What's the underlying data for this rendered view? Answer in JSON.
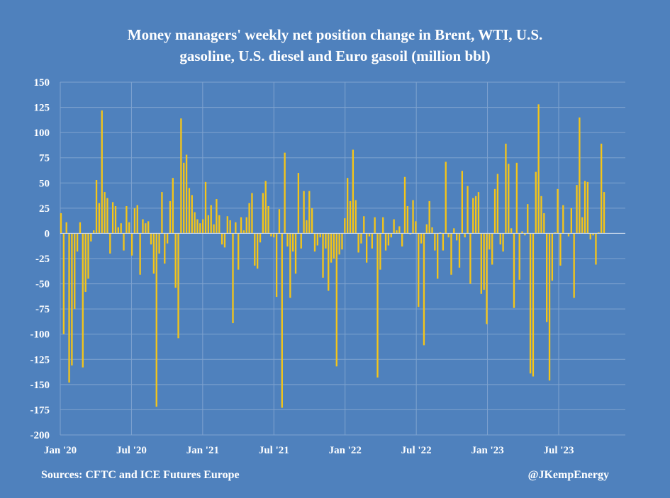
{
  "title_line1": "Money managers' weekly net position change in Brent, WTI, U.S.",
  "title_line2": "gasoline, U.S. diesel and Euro gasoil (million bbl)",
  "source_text": "Sources: CFTC and ICE Futures Europe",
  "credit_text": "@JKempEnergy",
  "colors": {
    "background": "#4f81bd",
    "bar": "#f5c518",
    "grid": "#7fa3cf",
    "text": "#ffffff"
  },
  "chart_data": {
    "type": "bar",
    "title": "Money managers' weekly net position change in Brent, WTI, U.S. gasoline, U.S. diesel and Euro gasoil (million bbl)",
    "xlabel": "",
    "ylabel": "",
    "ylim": [
      -200,
      150
    ],
    "yticks": [
      150,
      125,
      100,
      75,
      50,
      25,
      0,
      -25,
      -50,
      -75,
      -100,
      -125,
      -150,
      -175,
      -200
    ],
    "xticks": [
      "Jan '20",
      "Jul '20",
      "Jan '21",
      "Jul '21",
      "Jan '22",
      "Jul '22",
      "Jan '23",
      "Jul '23"
    ],
    "grid": true,
    "legend": "none",
    "start_week": "Jan '20",
    "values": [
      20,
      -100,
      11,
      -148,
      -131,
      -75,
      -18,
      11,
      -133,
      -58,
      -45,
      -8,
      3,
      53,
      30,
      122,
      41,
      35,
      -20,
      31,
      27,
      6,
      10,
      -17,
      27,
      11,
      -22,
      25,
      28,
      -41,
      14,
      10,
      12,
      -11,
      -40,
      -172,
      -20,
      41,
      -30,
      -10,
      32,
      55,
      -54,
      -104,
      114,
      70,
      78,
      45,
      38,
      21,
      14,
      10,
      14,
      51,
      18,
      28,
      9,
      34,
      18,
      -11,
      -14,
      17,
      13,
      -89,
      11,
      -36,
      16,
      3,
      16,
      30,
      40,
      -32,
      -35,
      -9,
      40,
      52,
      27,
      -3,
      -4,
      -63,
      24,
      -173,
      80,
      -13,
      -64,
      -18,
      -40,
      60,
      -15,
      42,
      13,
      42,
      25,
      -18,
      -12,
      -4,
      -44,
      -15,
      -57,
      -29,
      -25,
      -132,
      -21,
      -16,
      15,
      55,
      32,
      83,
      33,
      -19,
      -10,
      17,
      -29,
      -3,
      -15,
      16,
      -143,
      -36,
      16,
      -17,
      -12,
      -4,
      14,
      3,
      7,
      -13,
      56,
      27,
      -1,
      33,
      12,
      -73,
      -10,
      -111,
      9,
      32,
      6,
      -17,
      -45,
      1,
      -17,
      71,
      -4,
      -41,
      5,
      -7,
      -34,
      62,
      -4,
      47,
      -50,
      35,
      37,
      41,
      -60,
      -56,
      -90,
      -16,
      -31,
      44,
      59,
      -11,
      -18,
      89,
      69,
      5,
      -74,
      70,
      -46,
      2,
      -2,
      29,
      -139,
      -142,
      61,
      128,
      37,
      20,
      -88,
      -146,
      -47,
      1,
      44,
      -32,
      28,
      0,
      -3,
      25,
      -64,
      48,
      115,
      16,
      52,
      51,
      -6,
      -2,
      -31,
      1,
      89,
      41
    ]
  }
}
